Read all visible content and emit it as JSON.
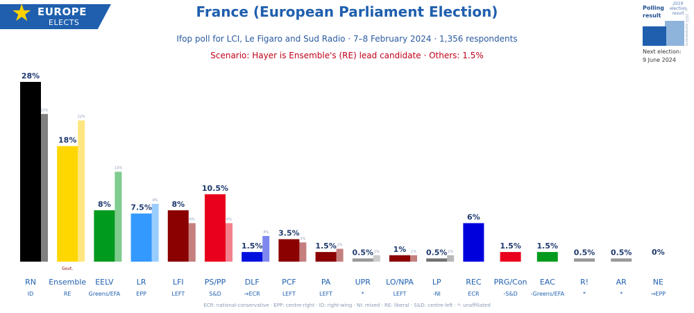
{
  "branding": {
    "logo_line1": "EUROPE",
    "logo_line2": "ELECTS",
    "brand_color": "#1f5fae",
    "star_color": "#ffd200"
  },
  "header": {
    "title": "France (European Parliament Election)",
    "subtitle": "Ifop poll for LCI, Le Figaro and Sud Radio · 7–8 February 2024 · 1,356 respondents",
    "scenario": "Scenario: Hayer is Ensemble's (RE) lead candidate · Others: 1.5%"
  },
  "legend": {
    "polling_label": "Polling result",
    "previous_label": "2019 election result",
    "copyright": "© 2021 europeelects",
    "next_election_label": "Next election:",
    "next_election_date": "9 June 2024"
  },
  "chart_data": {
    "type": "bar",
    "ylim": [
      0,
      28
    ],
    "grid": false,
    "legend_position": "top-right",
    "series": [
      {
        "name": "Polling result"
      },
      {
        "name": "2019 election result"
      }
    ],
    "parties": [
      {
        "name": "RN",
        "group": "ID",
        "value": 28,
        "label": "28%",
        "prev": 23,
        "prev_label": "23%",
        "color": "#000000",
        "prev_color": "#808080",
        "note": ""
      },
      {
        "name": "Ensemble",
        "group": "RE",
        "value": 18,
        "label": "18%",
        "prev": 22,
        "prev_label": "22%",
        "color": "#ffd700",
        "prev_color": "#ffe680",
        "note": "Govt."
      },
      {
        "name": "EELV",
        "group": "Greens/EFA",
        "value": 8,
        "label": "8%",
        "prev": 14,
        "prev_label": "14%",
        "color": "#009a1e",
        "prev_color": "#7fcc8e",
        "note": ""
      },
      {
        "name": "LR",
        "group": "EPP",
        "value": 7.5,
        "label": "7.5%",
        "prev": 9,
        "prev_label": "9%",
        "color": "#3399ff",
        "prev_color": "#99ccff",
        "note": ""
      },
      {
        "name": "LFI",
        "group": "LEFT",
        "value": 8,
        "label": "8%",
        "prev": 6,
        "prev_label": "6%",
        "color": "#8b0000",
        "prev_color": "#c57f7f",
        "note": ""
      },
      {
        "name": "PS/PP",
        "group": "S&D",
        "value": 10.5,
        "label": "10.5%",
        "prev": 6,
        "prev_label": "6%",
        "color": "#e8001c",
        "prev_color": "#f3808d",
        "note": ""
      },
      {
        "name": "DLF",
        "group": "→ECR",
        "value": 1.5,
        "label": "1.5%",
        "prev": 4,
        "prev_label": "4%",
        "color": "#0011dd",
        "prev_color": "#7f88ee",
        "note": ""
      },
      {
        "name": "PCF",
        "group": "LEFT",
        "value": 3.5,
        "label": "3.5%",
        "prev": 3,
        "prev_label": "3%",
        "color": "#8b0000",
        "prev_color": "#c57f7f",
        "note": ""
      },
      {
        "name": "PA",
        "group": "LEFT",
        "value": 1.5,
        "label": "1.5%",
        "prev": 2,
        "prev_label": "2%",
        "color": "#8b0000",
        "prev_color": "#c57f7f",
        "note": ""
      },
      {
        "name": "UPR",
        "group": "*",
        "value": 0.5,
        "label": "0.5%",
        "prev": 1,
        "prev_label": "1%",
        "color": "#999999",
        "prev_color": "#cccccc",
        "note": ""
      },
      {
        "name": "LO/NPA",
        "group": "LEFT",
        "value": 1,
        "label": "1%",
        "prev": 1,
        "prev_label": "1%",
        "color": "#8b0000",
        "prev_color": "#c57f7f",
        "note": ""
      },
      {
        "name": "LP",
        "group": "-NI",
        "value": 0.5,
        "label": "0.5%",
        "prev": 1,
        "prev_label": "1%",
        "color": "#707070",
        "prev_color": "#b8b8b8",
        "note": ""
      },
      {
        "name": "REC",
        "group": "ECR",
        "value": 6,
        "label": "6%",
        "prev": null,
        "prev_label": "",
        "color": "#0000dd",
        "prev_color": "",
        "note": ""
      },
      {
        "name": "PRG/Con",
        "group": "-S&D",
        "value": 1.5,
        "label": "1.5%",
        "prev": null,
        "prev_label": "",
        "color": "#e8001c",
        "prev_color": "",
        "note": ""
      },
      {
        "name": "EAC",
        "group": "-Greens/EFA",
        "value": 1.5,
        "label": "1.5%",
        "prev": null,
        "prev_label": "",
        "color": "#009a1e",
        "prev_color": "",
        "note": ""
      },
      {
        "name": "R!",
        "group": "*",
        "value": 0.5,
        "label": "0.5%",
        "prev": null,
        "prev_label": "",
        "color": "#999999",
        "prev_color": "",
        "note": ""
      },
      {
        "name": "AR",
        "group": "*",
        "value": 0.5,
        "label": "0.5%",
        "prev": null,
        "prev_label": "",
        "color": "#999999",
        "prev_color": "",
        "note": ""
      },
      {
        "name": "NE",
        "group": "→EPP",
        "value": 0,
        "label": "0%",
        "prev": null,
        "prev_label": "",
        "color": "#999999",
        "prev_color": "",
        "note": ""
      }
    ]
  },
  "footnote": "ECR: national-conservative · EPP: centre-right · ID: right-wing · NI: mixed · RE: liberal · S&D: centre-left · *: unaffiliated"
}
